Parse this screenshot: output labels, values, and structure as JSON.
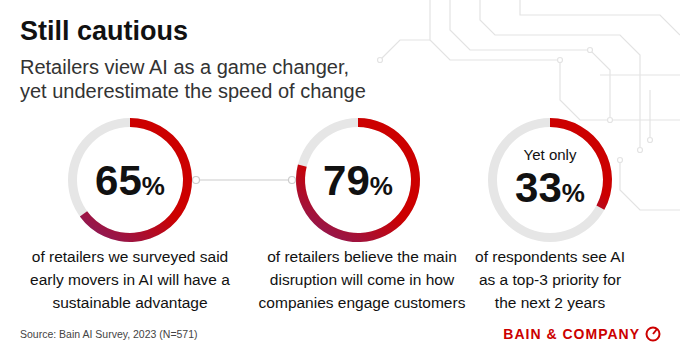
{
  "chart_data": {
    "type": "gauge",
    "title": "Still cautious",
    "subtitle": [
      "Retailers view AI as a game changer,",
      "yet underestimate the speed of change"
    ],
    "categories": [
      [
        "of retailers we surveyed said",
        "early movers in AI will have a",
        "sustainable advantage"
      ],
      [
        "of retailers believe the main",
        "disruption will come in how",
        "companies engage customers"
      ],
      [
        "of respondents see AI",
        "as a top-3 priority for",
        "the next 2 years"
      ]
    ],
    "values": [
      65,
      79,
      33
    ],
    "value_labels": [
      "65%",
      "79%",
      "33%"
    ],
    "annotations": [
      null,
      null,
      "Yet only"
    ],
    "ylim": [
      0,
      100
    ],
    "color": "#cc0000",
    "data_labels": true,
    "source": "Source: Bain AI Survey, 2023 (N=571)",
    "logo": "BAIN & COMPANY"
  }
}
